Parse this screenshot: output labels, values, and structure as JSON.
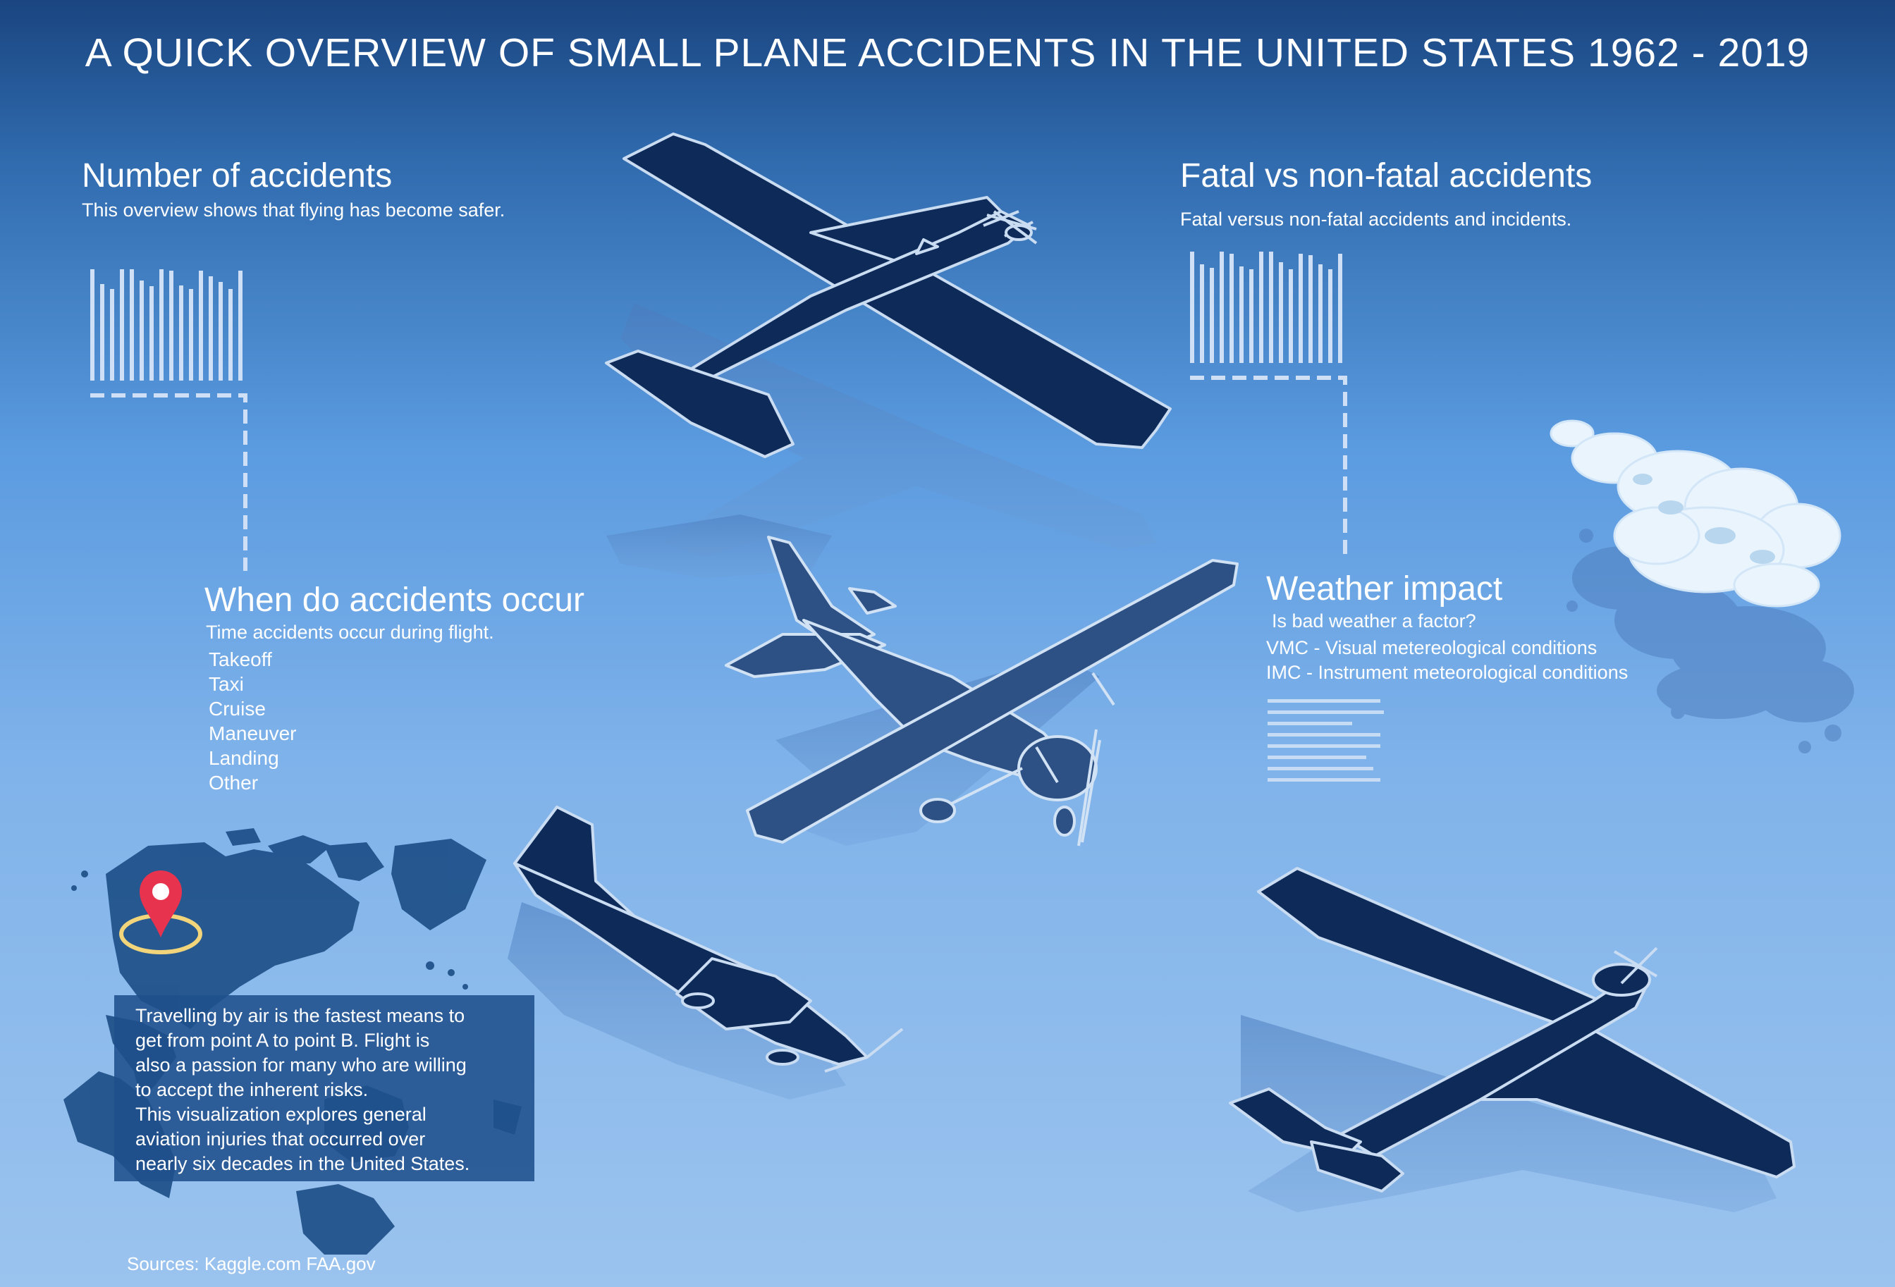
{
  "title": "A QUICK OVERVIEW OF SMALL PLANE ACCIDENTS IN THE UNITED STATES 1962 - 2019",
  "sections": {
    "accidents": {
      "heading": "Number of accidents",
      "subtitle": "This overview shows that flying has become safer."
    },
    "fatal": {
      "heading": "Fatal vs non-fatal accidents",
      "subtitle": "Fatal versus non-fatal accidents and incidents."
    },
    "phases": {
      "heading": "When do accidents occur",
      "subtitle": "Time accidents occur during flight.",
      "items": [
        "Takeoff",
        "Taxi",
        "Cruise",
        "Maneuver",
        "Landing",
        "Other"
      ]
    },
    "weather": {
      "heading": "Weather impact",
      "subtitle": "Is bad weather a factor?",
      "lines": [
        "VMC - Visual metereological conditions",
        "IMC - Instrument meteorological conditions"
      ]
    }
  },
  "intro": {
    "lines": [
      "Travelling by air is the fastest means to",
      "get from point A to point B. Flight is",
      "also a passion for many who are willing",
      "to accept the inherent risks.",
      "This visualization explores general",
      "aviation injuries that occurred over",
      "nearly six decades in the United States."
    ]
  },
  "sources": "Sources: Kaggle.com FAA.gov",
  "colors": {
    "plane_dark": "#0d2a58",
    "plane_mid": "#2d5184",
    "outline": "#c9dcf2",
    "bar": "#cfe0f6",
    "pin": "#e8334f",
    "ring": "#f2d47a"
  },
  "icons": [
    "airplane-icon",
    "location-pin-icon",
    "cloud-icon",
    "world-map-icon"
  ]
}
